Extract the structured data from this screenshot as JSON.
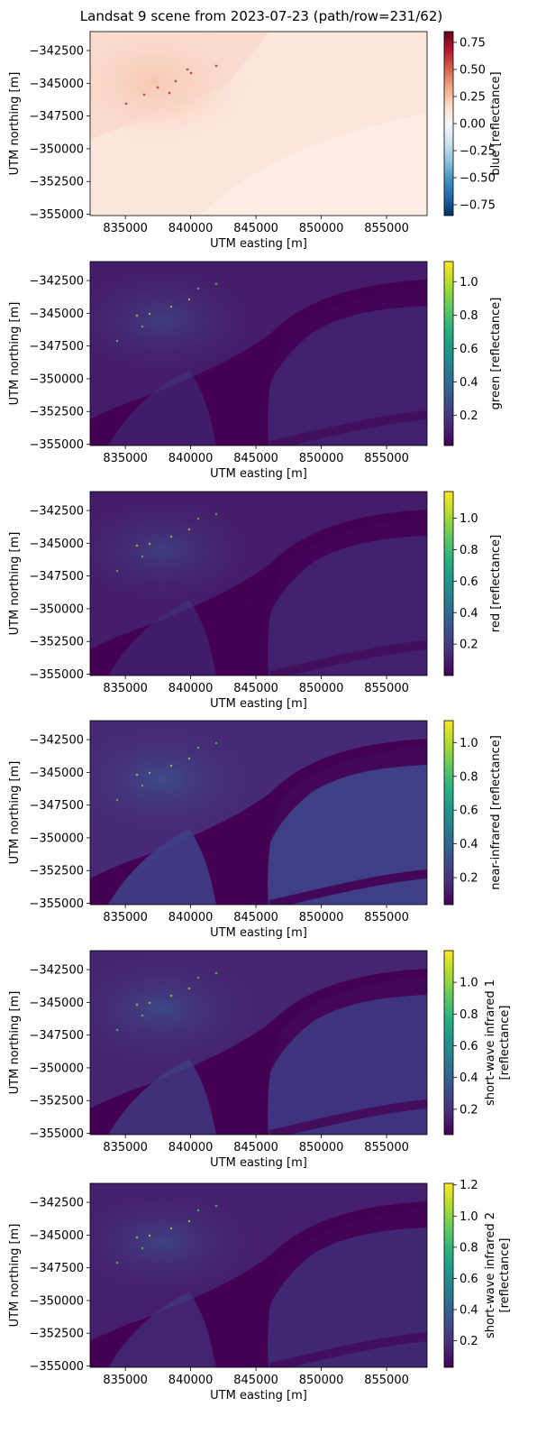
{
  "title": "Landsat 9 scene from 2023-07-23 (path/row=231/62)",
  "chart_data": [
    {
      "type": "heatmap",
      "xlabel": "UTM easting [m]",
      "ylabel": "UTM northing [m]",
      "colorbar_label": [
        "blue [reflectance]"
      ],
      "colormap": "RdBu_r",
      "xlim": [
        832300,
        858100
      ],
      "ylim": [
        -355100,
        -341050
      ],
      "x_ticks": [
        "835000",
        "840000",
        "845000",
        "850000",
        "855000"
      ],
      "y_ticks": [
        "−342500",
        "−345000",
        "−347500",
        "−350000",
        "−352500",
        "−355000"
      ],
      "colorbar_range": [
        -0.85,
        0.85
      ],
      "colorbar_ticks": [
        "0.75",
        "0.50",
        "0.25",
        "0.00",
        "−0.25",
        "−0.50",
        "−0.75"
      ]
    },
    {
      "type": "heatmap",
      "xlabel": "UTM easting [m]",
      "ylabel": "UTM northing [m]",
      "colorbar_label": [
        "green [reflectance]"
      ],
      "colormap": "viridis",
      "xlim": [
        832300,
        858100
      ],
      "ylim": [
        -355100,
        -341050
      ],
      "x_ticks": [
        "835000",
        "840000",
        "845000",
        "850000",
        "855000"
      ],
      "y_ticks": [
        "−342500",
        "−345000",
        "−347500",
        "−350000",
        "−352500",
        "−355000"
      ],
      "colorbar_range": [
        0.02,
        1.12
      ],
      "colorbar_ticks": [
        "1.0",
        "0.8",
        "0.6",
        "0.4",
        "0.2"
      ]
    },
    {
      "type": "heatmap",
      "xlabel": "UTM easting [m]",
      "ylabel": "UTM northing [m]",
      "colorbar_label": [
        "red [reflectance]"
      ],
      "colormap": "viridis",
      "xlim": [
        832300,
        858100
      ],
      "ylim": [
        -355100,
        -341050
      ],
      "x_ticks": [
        "835000",
        "840000",
        "845000",
        "850000",
        "855000"
      ],
      "y_ticks": [
        "−342500",
        "−345000",
        "−347500",
        "−350000",
        "−352500",
        "−355000"
      ],
      "colorbar_range": [
        0.0,
        1.17
      ],
      "colorbar_ticks": [
        "1.0",
        "0.8",
        "0.6",
        "0.4",
        "0.2"
      ]
    },
    {
      "type": "heatmap",
      "xlabel": "UTM easting [m]",
      "ylabel": "UTM northing [m]",
      "colorbar_label": [
        "near-infrared [reflectance]"
      ],
      "colormap": "viridis",
      "xlim": [
        832300,
        858100
      ],
      "ylim": [
        -355100,
        -341050
      ],
      "x_ticks": [
        "835000",
        "840000",
        "845000",
        "850000",
        "855000"
      ],
      "y_ticks": [
        "−342500",
        "−345000",
        "−347500",
        "−350000",
        "−352500",
        "−355000"
      ],
      "colorbar_range": [
        0.04,
        1.13
      ],
      "colorbar_ticks": [
        "1.0",
        "0.8",
        "0.6",
        "0.4",
        "0.2"
      ]
    },
    {
      "type": "heatmap",
      "xlabel": "UTM easting [m]",
      "ylabel": "UTM northing [m]",
      "colorbar_label": [
        "short-wave infrared 1",
        "[reflectance]"
      ],
      "colormap": "viridis",
      "xlim": [
        832300,
        858100
      ],
      "ylim": [
        -355100,
        -341050
      ],
      "x_ticks": [
        "835000",
        "840000",
        "845000",
        "850000",
        "855000"
      ],
      "y_ticks": [
        "−342500",
        "−345000",
        "−347500",
        "−350000",
        "−352500",
        "−355000"
      ],
      "colorbar_range": [
        0.04,
        1.2
      ],
      "colorbar_ticks": [
        "1.0",
        "0.8",
        "0.6",
        "0.4",
        "0.2"
      ]
    },
    {
      "type": "heatmap",
      "xlabel": "UTM easting [m]",
      "ylabel": "UTM northing [m]",
      "colorbar_label": [
        "short-wave infrared 2",
        "[reflectance]"
      ],
      "colormap": "viridis",
      "xlim": [
        832300,
        858100
      ],
      "ylim": [
        -355100,
        -341050
      ],
      "x_ticks": [
        "835000",
        "840000",
        "845000",
        "850000",
        "855000"
      ],
      "y_ticks": [
        "−342500",
        "−345000",
        "−347500",
        "−350000",
        "−352500",
        "−355000"
      ],
      "colorbar_range": [
        0.03,
        1.21
      ],
      "colorbar_ticks": [
        "1.2",
        "1.0",
        "0.8",
        "0.6",
        "0.4",
        "0.2"
      ]
    }
  ]
}
